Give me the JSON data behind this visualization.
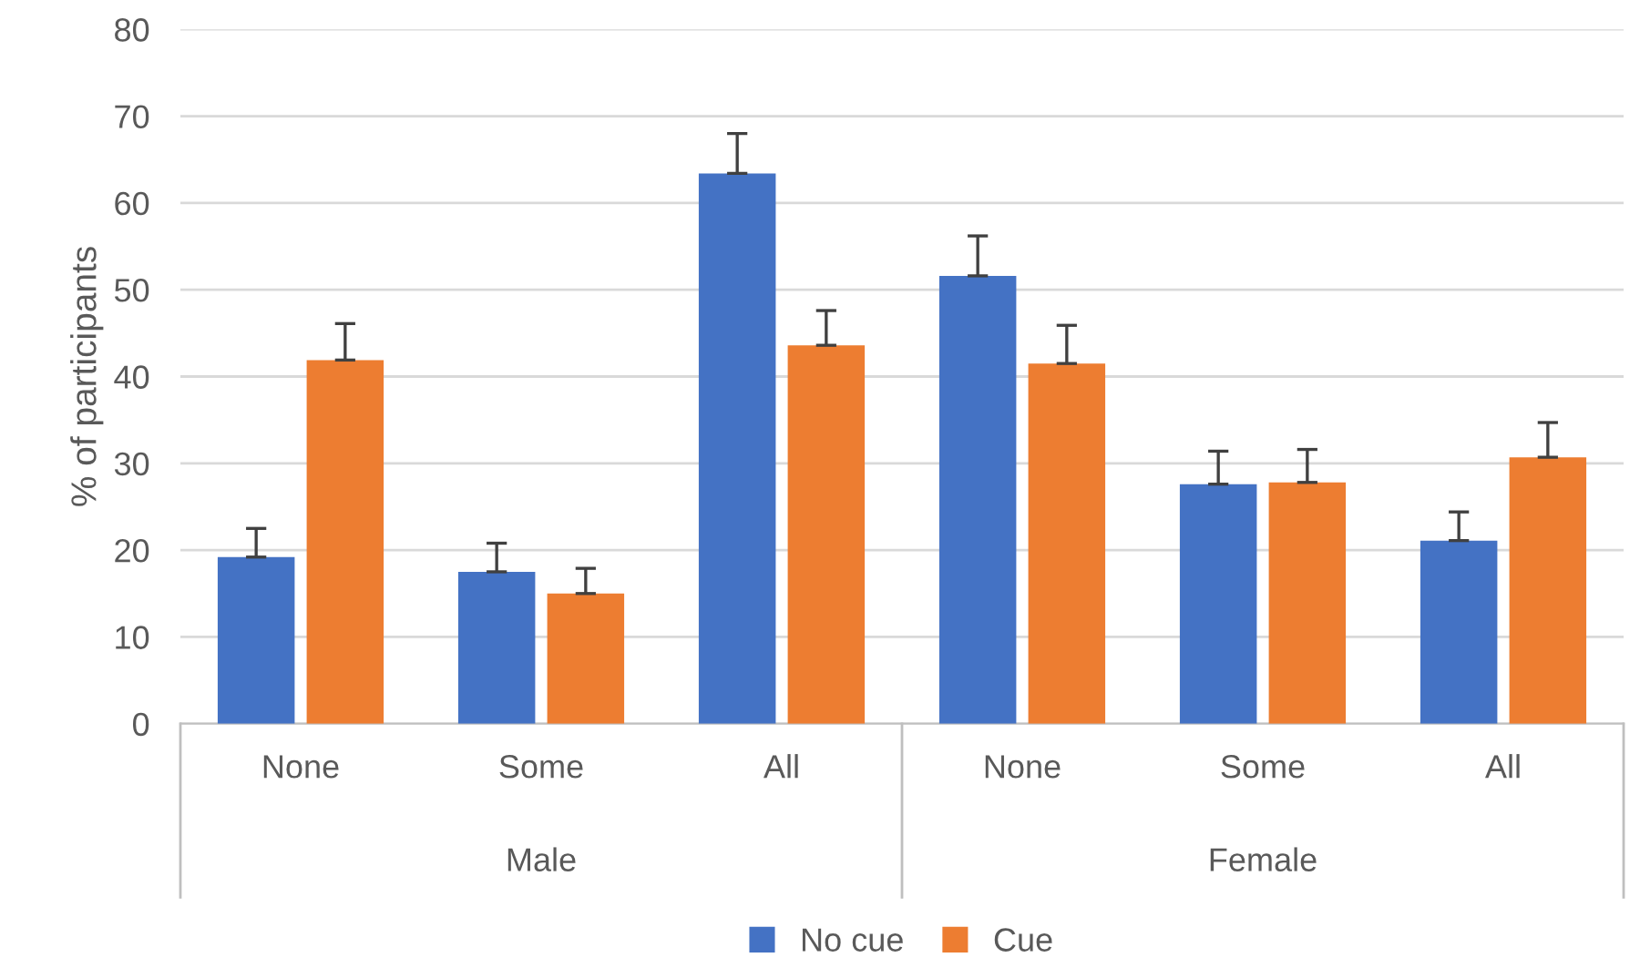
{
  "chart_data": {
    "type": "bar",
    "ylabel": "% of participants",
    "categories": [
      "None",
      "Some",
      "All",
      "None",
      "Some",
      "All"
    ],
    "annotations": [
      "Male",
      "Female"
    ],
    "series": [
      {
        "name": "No cue",
        "color": "#4472c4",
        "values": [
          19.2,
          17.5,
          63.4,
          51.6,
          27.6,
          21.1
        ],
        "errors": [
          [
            19.2,
            22.5
          ],
          [
            17.5,
            20.8
          ],
          [
            63.4,
            68
          ],
          [
            51.6,
            56.2
          ],
          [
            27.6,
            31.4
          ],
          [
            21.1,
            24.4
          ]
        ]
      },
      {
        "name": "Cue",
        "color": "#ed7d31",
        "values": [
          41.9,
          15,
          43.6,
          41.5,
          27.8,
          30.7
        ],
        "errors": [
          [
            41.9,
            46.1
          ],
          [
            15,
            17.9
          ],
          [
            43.6,
            47.6
          ],
          [
            41.5,
            45.9
          ],
          [
            27.8,
            31.6
          ],
          [
            30.7,
            34.7
          ]
        ]
      }
    ],
    "ylim": [
      0,
      80
    ],
    "yticks": [
      0,
      10,
      20,
      30,
      40,
      50,
      60,
      70,
      80
    ],
    "grid": "y",
    "legend": "bottom"
  }
}
